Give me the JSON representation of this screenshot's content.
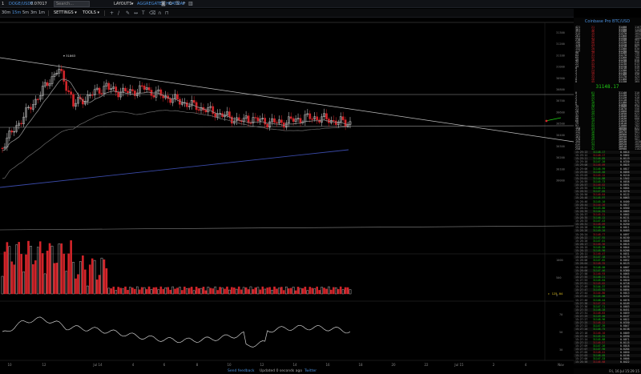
{
  "topbar": {
    "workspace": "1",
    "symbol": "DOGE/USDT",
    "symbol_price": "0.07017",
    "search_placeholder": "Search...",
    "layouts_label": "LAYOUTS",
    "layouts_caret": "▾",
    "layout_name": "AGGREGATED HEATMAP",
    "icons": [
      "camera-icon",
      "settings-icon",
      "list-icon",
      "plus-icon",
      "trash-icon"
    ]
  },
  "toolbar": {
    "timeframes": [
      {
        "label": "30m",
        "active": false
      },
      {
        "label": "15m",
        "active": true
      },
      {
        "label": "5m",
        "active": false
      },
      {
        "label": "3m",
        "active": false
      },
      {
        "label": "1m",
        "active": false
      }
    ],
    "settings_label": "SETTINGS",
    "tools_label": "TOOLS",
    "caret": "▾",
    "draw_icons": [
      "crosshair-icon",
      "trendline-icon",
      "pencil-icon",
      "measure-icon",
      "text-icon",
      "eraser-icon",
      "magnet-icon",
      "lock-icon"
    ]
  },
  "chart": {
    "high_label": "31863",
    "price_ticks": [
      "31300",
      "31200",
      "31100",
      "31000",
      "30900",
      "30800",
      "30700",
      "30600",
      "30500",
      "30400",
      "30300",
      "30200",
      "30100",
      "30000"
    ],
    "volume_ticks": [
      "1000",
      "500",
      "0"
    ],
    "osc_ticks": [
      "70",
      "50",
      "30"
    ],
    "vol_marker": "125.04",
    "x_labels": [
      "10",
      "12",
      "Jul 14",
      "4",
      "6",
      "8",
      "10",
      "12",
      "14",
      "16",
      "18",
      "20",
      "22",
      "Jul 15",
      "2",
      "4",
      "Nov"
    ],
    "colors": {
      "up": "#d8d8d8",
      "down": "#d4252a",
      "ema": "#8f8f8f",
      "sma": "#3a4aa8",
      "line": "#bdbdbd"
    }
  },
  "orderbook": {
    "title": "Coinbase Pro BTC/USD",
    "mid_price": "31148.17",
    "asks": [
      {
        "lv": "421",
        "size": "21",
        "p": "31400",
        "amt": "1167"
      },
      {
        "lv": "381",
        "size": "12",
        "p": "31390",
        "amt": "1133"
      },
      {
        "lv": "351",
        "size": "46",
        "p": "31380",
        "amt": "1098"
      },
      {
        "lv": "312",
        "size": "15",
        "p": "31370",
        "amt": "1052"
      },
      {
        "lv": "281",
        "size": "32",
        "p": "31360",
        "amt": "1037"
      },
      {
        "lv": "252",
        "size": "41",
        "p": "31350",
        "amt": "1005"
      },
      {
        "lv": "218",
        "size": "18",
        "p": "31340",
        "amt": "964"
      },
      {
        "lv": "196",
        "size": "56",
        "p": "31330",
        "amt": "946"
      },
      {
        "lv": "178",
        "size": "23",
        "p": "31320",
        "amt": "890"
      },
      {
        "lv": "154",
        "size": "37",
        "p": "31310",
        "amt": "867"
      },
      {
        "lv": "132",
        "size": "28",
        "p": "31300",
        "amt": "830"
      },
      {
        "lv": "117",
        "size": "44",
        "p": "31290",
        "amt": "802"
      },
      {
        "lv": "98",
        "size": "19",
        "p": "31280",
        "amt": "758"
      },
      {
        "lv": "84",
        "size": "31",
        "p": "31270",
        "amt": "739"
      },
      {
        "lv": "65",
        "size": "52",
        "p": "31260",
        "amt": "708"
      },
      {
        "lv": "49",
        "size": "16",
        "p": "31250",
        "amt": "656"
      },
      {
        "lv": "35",
        "size": "27",
        "p": "31240",
        "amt": "640"
      },
      {
        "lv": "22",
        "size": "43",
        "p": "31230",
        "amt": "613"
      },
      {
        "lv": "14",
        "size": "35",
        "p": "31220",
        "amt": "570"
      },
      {
        "lv": "8",
        "size": "17",
        "p": "31210",
        "amt": "535"
      },
      {
        "lv": "4",
        "size": "24",
        "p": "31200",
        "amt": "518"
      },
      {
        "lv": "2",
        "size": "58",
        "p": "31190",
        "amt": "494"
      },
      {
        "lv": "1",
        "size": "12",
        "p": "31180",
        "amt": "436"
      },
      {
        "lv": "1",
        "size": "33",
        "p": "31170",
        "amt": "424"
      },
      {
        "lv": "0",
        "size": "26",
        "p": "31160",
        "amt": "391"
      },
      {
        "lv": "0",
        "size": "45",
        "p": "31150",
        "amt": "365"
      }
    ],
    "bids": [
      {
        "lv": "0",
        "size": "61",
        "p": "31140",
        "amt": "310"
      },
      {
        "lv": "1",
        "size": "38",
        "p": "31130",
        "amt": "372"
      },
      {
        "lv": "2",
        "size": "22",
        "p": "31120",
        "amt": "410"
      },
      {
        "lv": "3",
        "size": "47",
        "p": "31110",
        "amt": "432"
      },
      {
        "lv": "6",
        "size": "18",
        "p": "31100",
        "amt": "479"
      },
      {
        "lv": "9",
        "size": "33",
        "p": "31090",
        "amt": "497"
      },
      {
        "lv": "15",
        "size": "26",
        "p": "31080",
        "amt": "530"
      },
      {
        "lv": "21",
        "size": "52",
        "p": "31070",
        "amt": "556"
      },
      {
        "lv": "28",
        "size": "14",
        "p": "31060",
        "amt": "608"
      },
      {
        "lv": "37",
        "size": "39",
        "p": "31050",
        "amt": "622"
      },
      {
        "lv": "45",
        "size": "27",
        "p": "31040",
        "amt": "661"
      },
      {
        "lv": "56",
        "size": "44",
        "p": "31030",
        "amt": "688"
      },
      {
        "lv": "68",
        "size": "19",
        "p": "31020",
        "amt": "732"
      },
      {
        "lv": "79",
        "size": "31",
        "p": "31010",
        "amt": "751"
      },
      {
        "lv": "91",
        "size": "55",
        "p": "31000",
        "amt": "782"
      },
      {
        "lv": "104",
        "size": "23",
        "p": "30990",
        "amt": "837"
      },
      {
        "lv": "118",
        "size": "41",
        "p": "30980",
        "amt": "860"
      },
      {
        "lv": "132",
        "size": "16",
        "p": "30970",
        "amt": "901"
      },
      {
        "lv": "147",
        "size": "36",
        "p": "30960",
        "amt": "917"
      },
      {
        "lv": "163",
        "size": "28",
        "p": "30950",
        "amt": "953"
      },
      {
        "lv": "178",
        "size": "49",
        "p": "30940",
        "amt": "981"
      },
      {
        "lv": "195",
        "size": "21",
        "p": "30930",
        "amt": "1030"
      },
      {
        "lv": "212",
        "size": "34",
        "p": "30920",
        "amt": "1051"
      },
      {
        "lv": "231",
        "size": "17",
        "p": "30910",
        "amt": "1085"
      },
      {
        "lv": "250",
        "size": "42",
        "p": "30900",
        "amt": "1102"
      }
    ]
  },
  "trades": [
    {
      "t": "15:29:13",
      "p": "31148.17",
      "a": "0.0014"
    },
    {
      "t": "15:29:12",
      "p": "31148.17",
      "a": "0.0062"
    },
    {
      "t": "15:29:11",
      "p": "31146.85",
      "a": "0.0119"
    },
    {
      "t": "15:29:10",
      "p": "31147.20",
      "a": "0.0330"
    },
    {
      "t": "15:29:08",
      "p": "31146.09",
      "a": "0.0025"
    },
    {
      "t": "15:29:06",
      "p": "31146.99",
      "a": "0.0817"
    },
    {
      "t": "15:29:05",
      "p": "31145.40",
      "a": "0.0056"
    },
    {
      "t": "15:29:03",
      "p": "31145.12",
      "a": "0.0210"
    },
    {
      "t": "15:29:01",
      "p": "31144.88",
      "a": "0.1542"
    },
    {
      "t": "15:28:59",
      "p": "31145.73",
      "a": "0.0038"
    },
    {
      "t": "15:28:57",
      "p": "31146.02",
      "a": "0.0091"
    },
    {
      "t": "15:28:55",
      "p": "31146.51",
      "a": "0.0004"
    },
    {
      "t": "15:28:52",
      "p": "31147.05",
      "a": "0.0270"
    },
    {
      "t": "15:28:50",
      "p": "31146.64",
      "a": "0.0122"
    },
    {
      "t": "15:28:48",
      "p": "31145.97",
      "a": "0.0063"
    },
    {
      "t": "15:28:46",
      "p": "31145.10",
      "a": "0.0400"
    },
    {
      "t": "15:28:44",
      "p": "31144.26",
      "a": "0.0017"
    },
    {
      "t": "15:28:41",
      "p": "31143.80",
      "a": "0.0560"
    },
    {
      "t": "15:28:39",
      "p": "31144.55",
      "a": "0.0085"
    },
    {
      "t": "15:28:37",
      "p": "31145.31",
      "a": "0.0002"
    },
    {
      "t": "15:28:35",
      "p": "31146.12",
      "a": "0.0131"
    },
    {
      "t": "15:28:33",
      "p": "31147.43",
      "a": "0.0074"
    },
    {
      "t": "15:28:31",
      "p": "31148.09",
      "a": "0.0250"
    },
    {
      "t": "15:28:28",
      "p": "31148.66",
      "a": "0.0011"
    },
    {
      "t": "15:28:26",
      "p": "31149.20",
      "a": "0.0403"
    },
    {
      "t": "15:28:24",
      "p": "31148.77",
      "a": "0.0097"
    },
    {
      "t": "15:28:22",
      "p": "31147.92",
      "a": "0.0150"
    },
    {
      "t": "15:28:20",
      "p": "31147.01",
      "a": "0.0008"
    },
    {
      "t": "15:28:17",
      "p": "31146.36",
      "a": "0.0615"
    },
    {
      "t": "15:28:15",
      "p": "31145.58",
      "a": "0.0044"
    },
    {
      "t": "15:28:13",
      "p": "31145.90",
      "a": "0.0206"
    },
    {
      "t": "15:28:11",
      "p": "31146.47",
      "a": "0.0031"
    },
    {
      "t": "15:28:09",
      "p": "31147.18",
      "a": "0.0179"
    },
    {
      "t": "15:28:06",
      "p": "31147.82",
      "a": "0.0052"
    },
    {
      "t": "15:28:04",
      "p": "31148.35",
      "a": "0.0123"
    },
    {
      "t": "15:28:02",
      "p": "31148.00",
      "a": "0.0007"
    },
    {
      "t": "15:28:00",
      "p": "31147.46",
      "a": "0.0380"
    },
    {
      "t": "15:27:58",
      "p": "31146.93",
      "a": "0.0065"
    },
    {
      "t": "15:27:55",
      "p": "31146.21",
      "a": "0.0141"
    },
    {
      "t": "15:27:53",
      "p": "31145.64",
      "a": "0.0020"
    },
    {
      "t": "15:27:51",
      "p": "31145.02",
      "a": "0.0728"
    },
    {
      "t": "15:27:49",
      "p": "31144.37",
      "a": "0.0036"
    },
    {
      "t": "15:27:47",
      "p": "31143.95",
      "a": "0.0094"
    },
    {
      "t": "15:27:44",
      "p": "31144.80",
      "a": "0.0013"
    },
    {
      "t": "15:27:42",
      "p": "31145.66",
      "a": "0.0252"
    },
    {
      "t": "15:27:40",
      "p": "31146.44",
      "a": "0.0078"
    },
    {
      "t": "15:27:38",
      "p": "31147.15",
      "a": "0.0109"
    },
    {
      "t": "15:27:36",
      "p": "31147.71",
      "a": "0.0003"
    },
    {
      "t": "15:27:33",
      "p": "31148.28",
      "a": "0.0451"
    },
    {
      "t": "15:27:31",
      "p": "31148.83",
      "a": "0.0059"
    },
    {
      "t": "15:27:29",
      "p": "31149.40",
      "a": "0.0167"
    },
    {
      "t": "15:27:27",
      "p": "31148.96",
      "a": "0.0022"
    },
    {
      "t": "15:27:25",
      "p": "31148.12",
      "a": "0.0330"
    },
    {
      "t": "15:27:22",
      "p": "31147.39",
      "a": "0.0047"
    },
    {
      "t": "15:27:20",
      "p": "31146.75",
      "a": "0.0138"
    },
    {
      "t": "15:27:18",
      "p": "31146.10",
      "a": "0.0009"
    },
    {
      "t": "15:27:16",
      "p": "31145.52",
      "a": "0.0590"
    },
    {
      "t": "15:27:14",
      "p": "31145.88",
      "a": "0.0071"
    },
    {
      "t": "15:27:11",
      "p": "31146.57",
      "a": "0.0115"
    },
    {
      "t": "15:27:09",
      "p": "31147.26",
      "a": "0.0018"
    },
    {
      "t": "15:27:07",
      "p": "31147.90",
      "a": "0.0284"
    },
    {
      "t": "15:27:05",
      "p": "31148.41",
      "a": "0.0050"
    },
    {
      "t": "15:27:03",
      "p": "31148.05",
      "a": "0.0196"
    },
    {
      "t": "15:27:00",
      "p": "31147.33",
      "a": "0.0006"
    },
    {
      "t": "15:26:58",
      "p": "31146.68",
      "a": "0.0422"
    }
  ],
  "footer": {
    "feedback": "Send feedback",
    "updated": "Updated 0 seconds ago",
    "twitter": "Twitter",
    "clock": "Fri, 16 Jul 15:29:15"
  }
}
